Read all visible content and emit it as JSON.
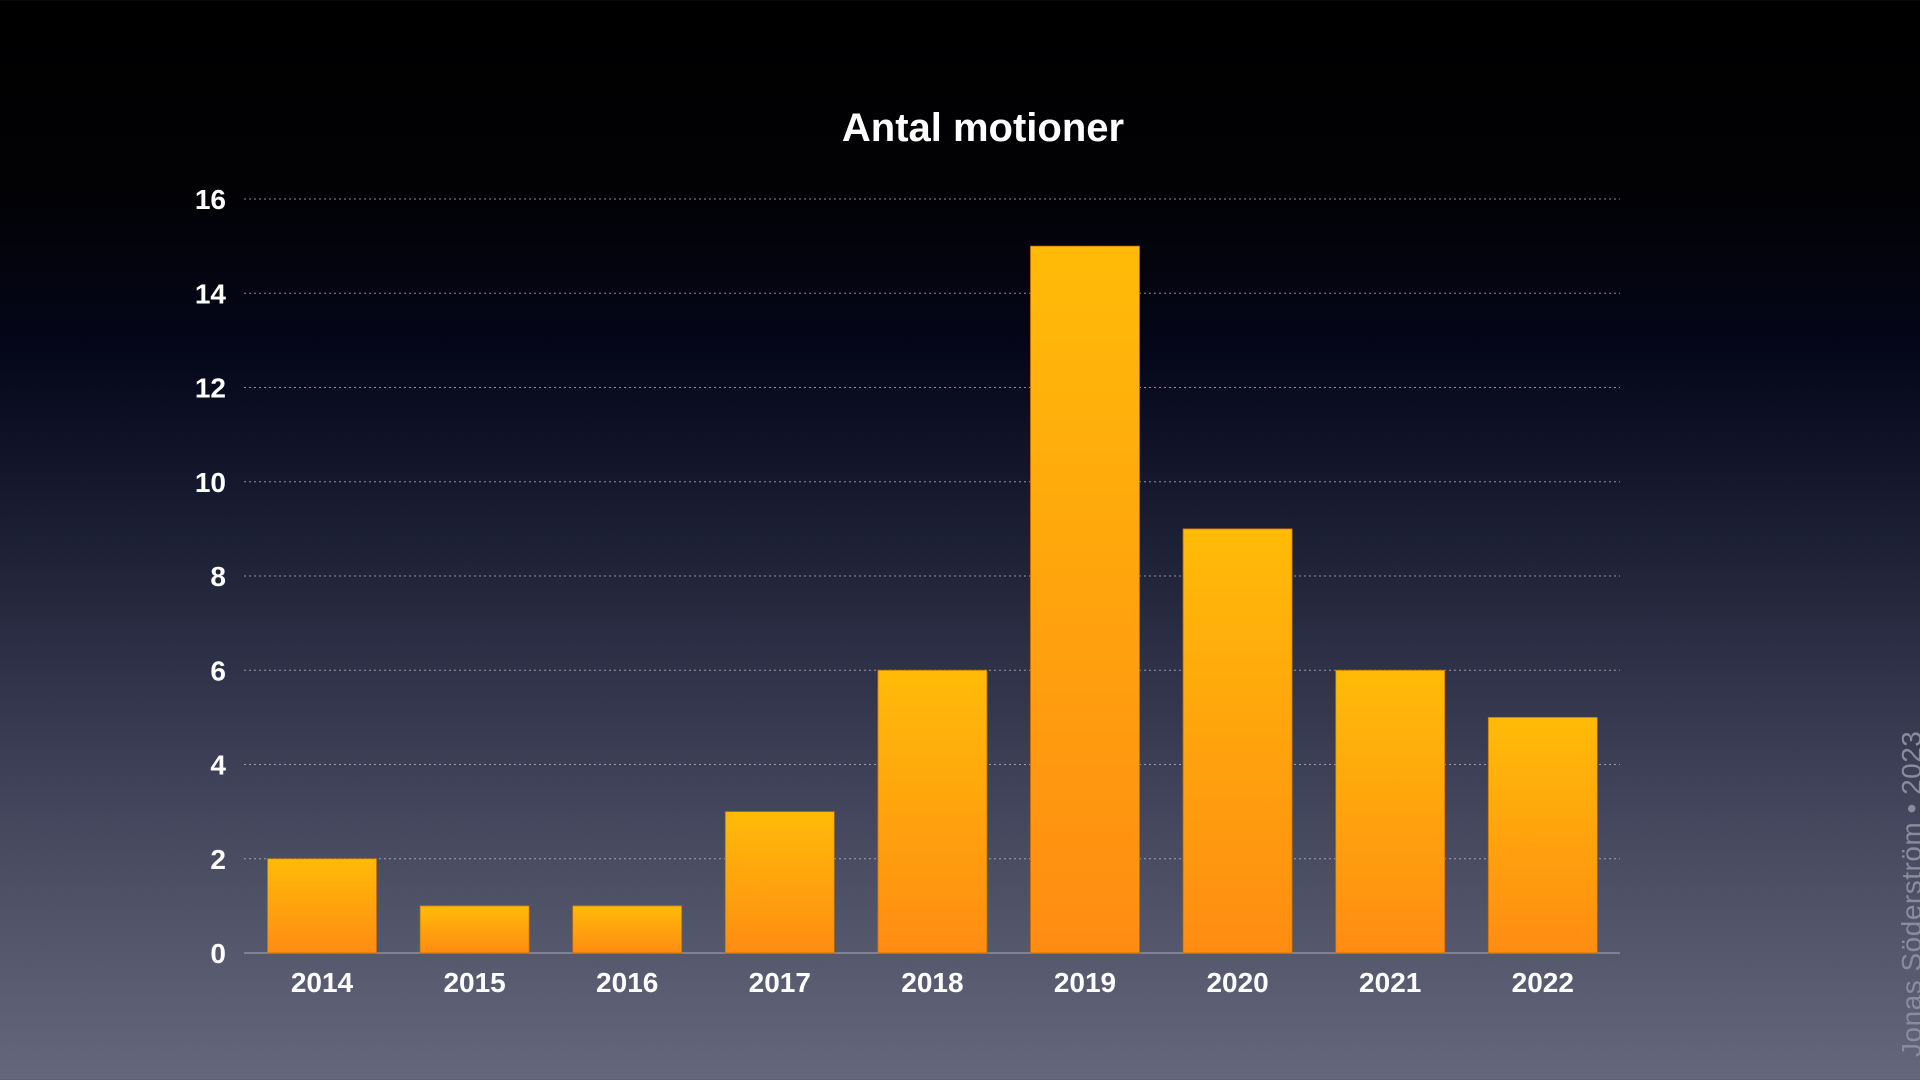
{
  "chart_data": {
    "type": "bar",
    "title": "Antal motioner",
    "xlabel": "",
    "ylabel": "",
    "categories": [
      "2014",
      "2015",
      "2016",
      "2017",
      "2018",
      "2019",
      "2020",
      "2021",
      "2022"
    ],
    "values": [
      2,
      1,
      1,
      3,
      6,
      15,
      9,
      6,
      5
    ],
    "ylim": [
      0,
      16
    ],
    "yticks": [
      0,
      2,
      4,
      6,
      8,
      10,
      12,
      14,
      16
    ],
    "grid": true,
    "legend": "none",
    "colors": {
      "bar_top": "#ffbb08",
      "bar_bottom": "#ff8c12",
      "text": "#ffffff",
      "grid": "#b9bcc8"
    }
  },
  "credit": "Jonas Söderström • 2023"
}
